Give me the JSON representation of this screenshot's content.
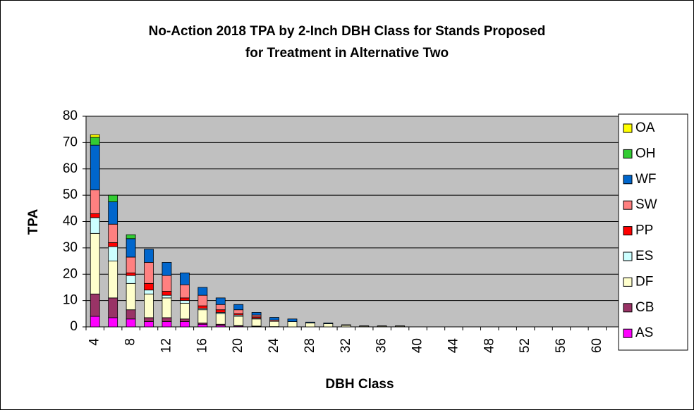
{
  "chart_data": {
    "type": "stacked_bar",
    "title": [
      "No-Action 2018 TPA by 2-Inch DBH Class for Stands Proposed",
      "for Treatment in Alternative Two"
    ],
    "x_label": "DBH Class",
    "y_label": "TPA",
    "categories": [
      4,
      null,
      8,
      null,
      12,
      null,
      16,
      null,
      20,
      null,
      24,
      null,
      28,
      null,
      32,
      null,
      36,
      null,
      40,
      null,
      44,
      null,
      48,
      null,
      52,
      null,
      56,
      null,
      60,
      null
    ],
    "ylim": [
      0,
      80
    ],
    "yticks": [
      0,
      10,
      20,
      30,
      40,
      50,
      60,
      70,
      80
    ],
    "grid": true,
    "legend": "right",
    "series": [
      {
        "name": "AS",
        "color": "#ff00ff",
        "values": [
          4,
          3.5,
          3,
          2,
          2,
          2,
          1,
          0.5,
          0.3,
          0.2,
          0.1,
          0,
          0,
          0,
          0,
          0,
          0,
          0,
          0,
          0,
          0,
          0,
          0,
          0,
          0,
          0,
          0,
          0,
          0,
          0
        ]
      },
      {
        "name": "CB",
        "color": "#993366",
        "values": [
          8.5,
          7.5,
          3.5,
          1.5,
          1.5,
          1,
          0.5,
          0.5,
          0.2,
          0.1,
          0,
          0,
          0,
          0,
          0,
          0,
          0,
          0,
          0,
          0,
          0,
          0,
          0,
          0,
          0,
          0,
          0,
          0,
          0,
          0
        ]
      },
      {
        "name": "DF",
        "color": "#ffffcc",
        "values": [
          23,
          14,
          10,
          9,
          7.5,
          6,
          5,
          4,
          3.5,
          2.7,
          2,
          2,
          1.5,
          1.2,
          0.6,
          0.3,
          0.3,
          0.3,
          0,
          0,
          0,
          0,
          0,
          0,
          0,
          0,
          0,
          0,
          0,
          0
        ]
      },
      {
        "name": "ES",
        "color": "#ccffff",
        "values": [
          6,
          5.5,
          3,
          1.5,
          1,
          1,
          0.5,
          0.5,
          0.5,
          0.3,
          0,
          0,
          0,
          0,
          0,
          0,
          0,
          0,
          0,
          0,
          0,
          0,
          0,
          0,
          0,
          0,
          0,
          0,
          0,
          0
        ]
      },
      {
        "name": "PP",
        "color": "#ff0000",
        "values": [
          1.5,
          1.5,
          1,
          2.5,
          1.5,
          1,
          1,
          1,
          0.5,
          0.5,
          0,
          0,
          0,
          0,
          0,
          0,
          0,
          0,
          0,
          0,
          0,
          0,
          0,
          0,
          0,
          0,
          0,
          0,
          0,
          0
        ]
      },
      {
        "name": "SW",
        "color": "#ff8080",
        "values": [
          9,
          7,
          6,
          8,
          6,
          5,
          4,
          2,
          1.5,
          0.7,
          0.5,
          0,
          0,
          0,
          0,
          0,
          0,
          0,
          0,
          0,
          0,
          0,
          0,
          0,
          0,
          0,
          0,
          0,
          0,
          0
        ]
      },
      {
        "name": "WF",
        "color": "#0066cc",
        "values": [
          17,
          8.5,
          7,
          5,
          5,
          4.5,
          3,
          2.5,
          2,
          1,
          1,
          1,
          0.3,
          0.3,
          0.2,
          0.1,
          0.1,
          0.1,
          0,
          0,
          0,
          0,
          0,
          0,
          0,
          0,
          0,
          0,
          0,
          0
        ]
      },
      {
        "name": "OH",
        "color": "#33cc33",
        "values": [
          3,
          2.5,
          1.5,
          0,
          0,
          0,
          0,
          0,
          0,
          0,
          0,
          0,
          0,
          0,
          0,
          0,
          0,
          0,
          0,
          0,
          0,
          0,
          0,
          0,
          0,
          0,
          0,
          0,
          0,
          0
        ]
      },
      {
        "name": "OA",
        "color": "#ffff00",
        "values": [
          1,
          0,
          0,
          0,
          0,
          0,
          0,
          0,
          0,
          0,
          0,
          0,
          0,
          0,
          0,
          0,
          0,
          0,
          0,
          0,
          0,
          0,
          0,
          0,
          0,
          0,
          0,
          0,
          0,
          0
        ]
      }
    ]
  }
}
